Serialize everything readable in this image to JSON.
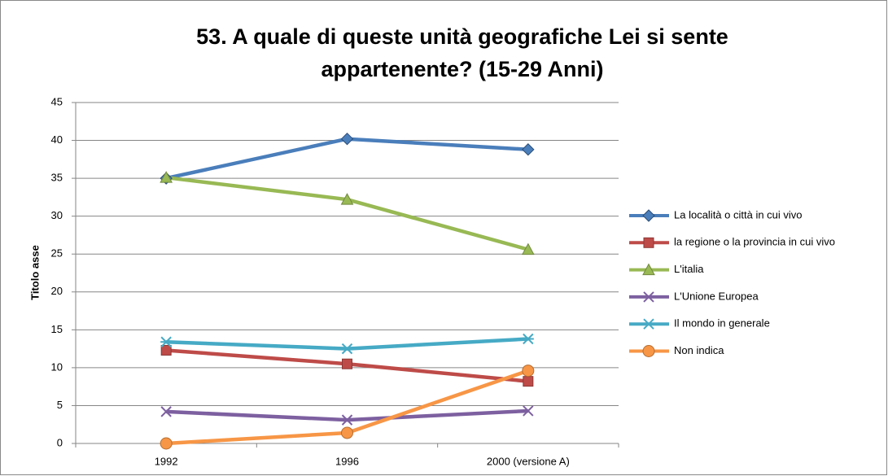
{
  "chart_data": {
    "type": "line",
    "title": [
      "53. A quale di queste unità geografiche Lei si sente",
      "appartenente? (15-29 Anni)"
    ],
    "y_axis_label": "Titolo asse",
    "categories": [
      "1992",
      "1996",
      "2000 (versione A)"
    ],
    "ylim": [
      0,
      45
    ],
    "yticks": [
      0,
      5,
      10,
      15,
      20,
      25,
      30,
      35,
      40,
      45
    ],
    "grid": true,
    "legend": "right",
    "series": [
      {
        "name": "La località o città in cui vivo",
        "color": "#4a7ebb",
        "marker": "diamond",
        "values": [
          35.0,
          40.2,
          38.8
        ]
      },
      {
        "name": "la regione o la provincia in cui vivo",
        "color": "#be4b48",
        "marker": "square",
        "values": [
          12.3,
          10.5,
          8.2
        ]
      },
      {
        "name": "L'italia",
        "color": "#98b954",
        "marker": "triangle",
        "values": [
          35.1,
          32.2,
          25.6
        ]
      },
      {
        "name": "L'Unione Europea",
        "color": "#7d60a0",
        "marker": "x",
        "values": [
          4.2,
          3.1,
          4.3
        ]
      },
      {
        "name": "Il mondo in generale",
        "color": "#46aac5",
        "marker": "star",
        "values": [
          13.4,
          12.5,
          13.8
        ]
      },
      {
        "name": "Non indica",
        "color": "#f79646",
        "marker": "circle",
        "values": [
          0,
          1.4,
          9.6
        ]
      }
    ]
  }
}
